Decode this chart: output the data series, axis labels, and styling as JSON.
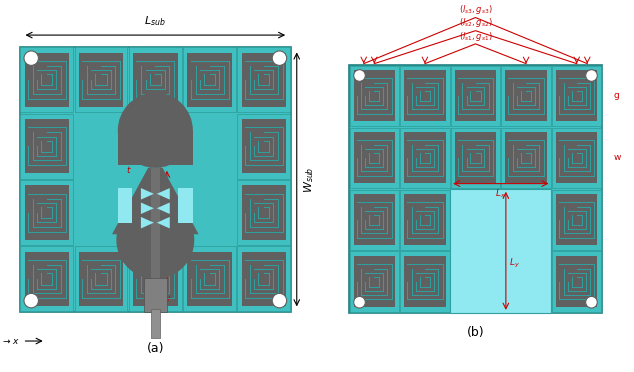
{
  "bg_color": "#ffffff",
  "substrate_color": "#40c0c0",
  "cell_border_color": "#30a0a0",
  "cell_bg_color": "#606060",
  "spiral_color": "#30a0a0",
  "cyan_fill": "#80e8e8",
  "light_cyan": "#90e8f0",
  "dark_gray": "#404040",
  "medium_gray": "#585858",
  "red_annotation": "#cc0000",
  "black_annotation": "#000000",
  "label_a": "(a)",
  "label_b": "(b)",
  "annotation_fontsize": 6.5,
  "sub_label_fontsize": 9
}
